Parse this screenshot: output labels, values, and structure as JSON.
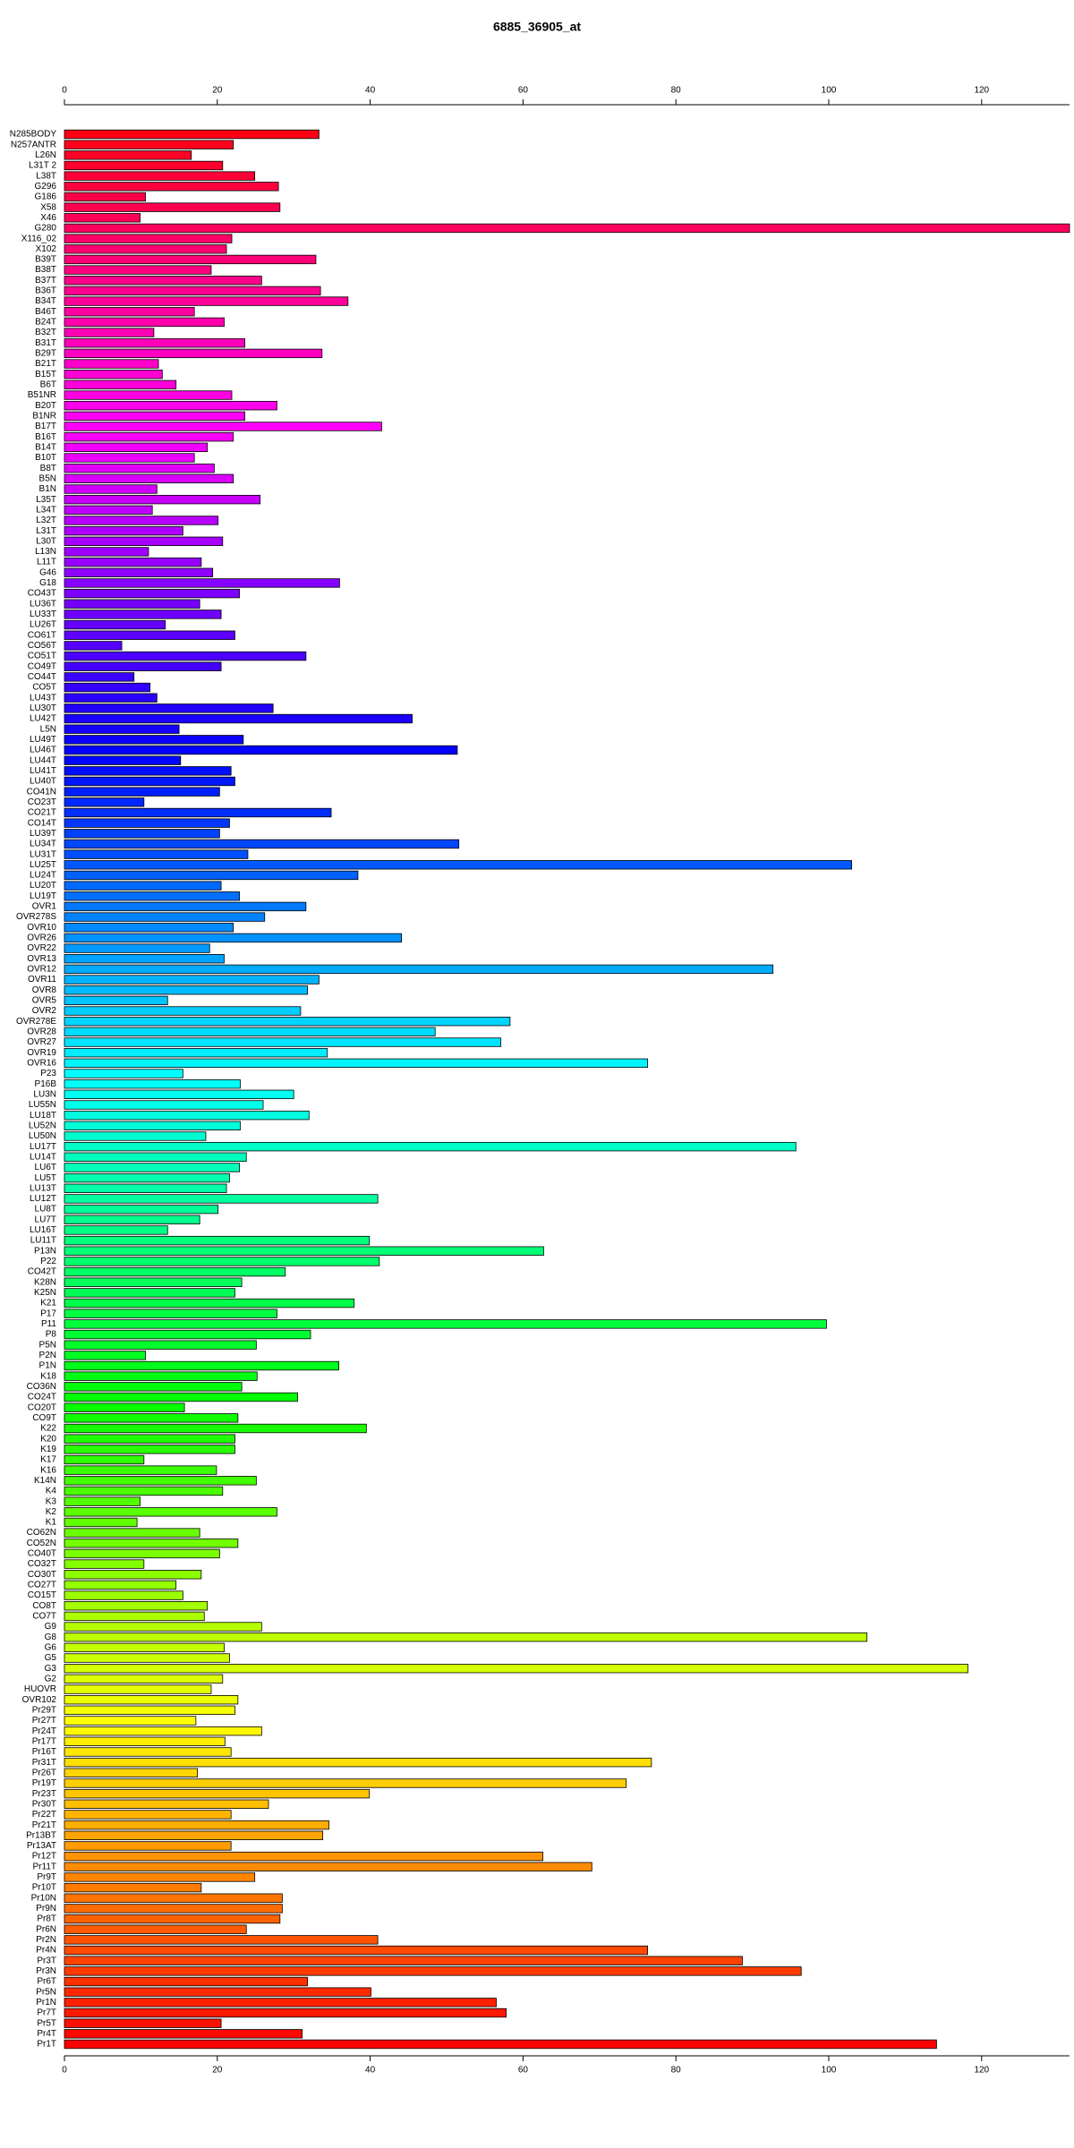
{
  "chart_data": {
    "type": "barh",
    "title": "6885_36905_at",
    "categories": [
      "N285BODY",
      "N257ANTR",
      "L26N",
      "L31T 2",
      "L38T",
      "G296",
      "G186",
      "X58",
      "X46",
      "G280",
      "X116_02",
      "X102",
      "B39T",
      "B38T",
      "B37T",
      "B36T",
      "B34T",
      "B46T",
      "B24T",
      "B32T",
      "B31T",
      "B29T",
      "B21T",
      "B15T",
      "B6T",
      "B51NR",
      "B20T",
      "B1NR",
      "B17T",
      "B16T",
      "B14T",
      "B10T",
      "B8T",
      "B5N",
      "B1N",
      "L35T",
      "L34T",
      "L32T",
      "L31T",
      "L30T",
      "L13N",
      "L11T",
      "G46",
      "G18",
      "CO43T",
      "LU36T",
      "LU33T",
      "LU26T",
      "CO61T",
      "CO56T",
      "CO51T",
      "CO49T",
      "CO44T",
      "CO5T",
      "LU43T",
      "LU30T",
      "LU42T",
      "L5N",
      "LU49T",
      "LU46T",
      "LU44T",
      "LU41T",
      "LU40T",
      "CO41N",
      "CO23T",
      "CO21T",
      "CO14T",
      "LU39T",
      "LU34T",
      "LU31T",
      "LU25T",
      "LU24T",
      "LU20T",
      "LU19T",
      "OVR1",
      "OVR278S",
      "OVR10",
      "OVR26",
      "OVR22",
      "OVR13",
      "OVR12",
      "OVR11",
      "OVR8",
      "OVR5",
      "OVR2",
      "OVR278E",
      "OVR28",
      "OVR27",
      "OVR19",
      "OVR16",
      "P23",
      "P16B",
      "LU3N",
      "LU55N",
      "LU18T",
      "LU52N",
      "LU50N",
      "LU17T",
      "LU14T",
      "LU6T",
      "LU5T",
      "LU13T",
      "LU12T",
      "LU8T",
      "LU7T",
      "LU16T",
      "LU11T",
      "P13N",
      "P22",
      "CO42T",
      "K28N",
      "K25N",
      "K21",
      "P17",
      "P11",
      "P8",
      "P5N",
      "P2N",
      "P1N",
      "K18",
      "CO36N",
      "CO24T",
      "CO20T",
      "CO9T",
      "K22",
      "K20",
      "K19",
      "K17",
      "K16",
      "K14N",
      "K4",
      "K3",
      "K2",
      "K1",
      "CO62N",
      "CO52N",
      "CO40T",
      "CO32T",
      "CO30T",
      "CO27T",
      "CO15T",
      "CO8T",
      "CO7T",
      "G9",
      "G8",
      "G6",
      "G5",
      "G3",
      "G2",
      "HUOVR",
      "OVR102",
      "Pr29T",
      "Pr27T",
      "Pr24T",
      "Pr17T",
      "Pr16T",
      "Pr31T",
      "Pr26T",
      "Pr19T",
      "Pr23T",
      "Pr30T",
      "Pr22T",
      "Pr21T",
      "Pr13BT",
      "Pr13AT",
      "Pr12T",
      "Pr11T",
      "Pr9T",
      "Pr10T",
      "Pr10N",
      "Pr9N",
      "Pr8T",
      "Pr6N",
      "Pr2N",
      "Pr4N",
      "Pr3T",
      "Pr3N",
      "Pr6T",
      "Pr5N",
      "Pr1N",
      "Pr7T",
      "Pr5T",
      "Pr4T",
      "Pr1T"
    ],
    "values": [
      33.3,
      22.1,
      16.6,
      20.7,
      24.9,
      28.0,
      10.6,
      28.2,
      9.9,
      131.5,
      21.9,
      21.2,
      32.9,
      19.2,
      25.8,
      33.5,
      37.1,
      17.0,
      20.9,
      11.7,
      23.6,
      33.7,
      12.3,
      12.8,
      14.6,
      21.9,
      27.8,
      23.6,
      41.5,
      22.1,
      18.7,
      17.0,
      19.6,
      22.1,
      12.1,
      25.6,
      11.5,
      20.1,
      15.5,
      20.7,
      11.0,
      17.9,
      19.4,
      36.0,
      22.9,
      17.7,
      20.5,
      13.2,
      22.3,
      7.5,
      31.6,
      20.5,
      9.1,
      11.2,
      12.1,
      27.3,
      45.5,
      15.0,
      23.4,
      51.4,
      15.2,
      21.8,
      22.3,
      20.3,
      10.4,
      34.9,
      21.6,
      20.3,
      51.6,
      24.0,
      103.0,
      38.4,
      20.5,
      22.9,
      31.6,
      26.2,
      22.1,
      44.1,
      19.0,
      20.9,
      92.7,
      33.3,
      31.8,
      13.5,
      30.9,
      58.3,
      48.5,
      57.1,
      34.4,
      76.3,
      15.5,
      23.0,
      30.0,
      26.0,
      32.0,
      23.0,
      18.5,
      95.7,
      23.8,
      22.9,
      21.6,
      21.2,
      41.0,
      20.1,
      17.7,
      13.5,
      39.9,
      62.7,
      41.2,
      28.9,
      23.2,
      22.3,
      37.9,
      27.8,
      99.7,
      32.2,
      25.1,
      10.6,
      35.9,
      25.2,
      23.2,
      30.5,
      15.7,
      22.7,
      39.5,
      22.3,
      22.3,
      10.4,
      19.9,
      25.1,
      20.7,
      9.9,
      27.8,
      9.5,
      17.7,
      22.7,
      20.3,
      10.4,
      17.9,
      14.6,
      15.5,
      18.7,
      18.3,
      25.8,
      105.0,
      20.9,
      21.6,
      118.2,
      20.7,
      19.2,
      22.7,
      22.3,
      17.2,
      25.8,
      21.0,
      21.8,
      76.8,
      17.4,
      73.5,
      39.9,
      26.7,
      21.8,
      34.6,
      33.8,
      21.8,
      62.6,
      69.0,
      24.9,
      17.9,
      28.5,
      28.5,
      28.2,
      23.8,
      41.0,
      76.3,
      88.7,
      96.4,
      31.8,
      40.1,
      56.5,
      57.8,
      20.5,
      31.1,
      114.1
    ],
    "palette": "rainbow-reverse",
    "xlim": [
      0,
      131.5
    ],
    "xticks": [
      0,
      20,
      40,
      60,
      80,
      100,
      120
    ]
  }
}
